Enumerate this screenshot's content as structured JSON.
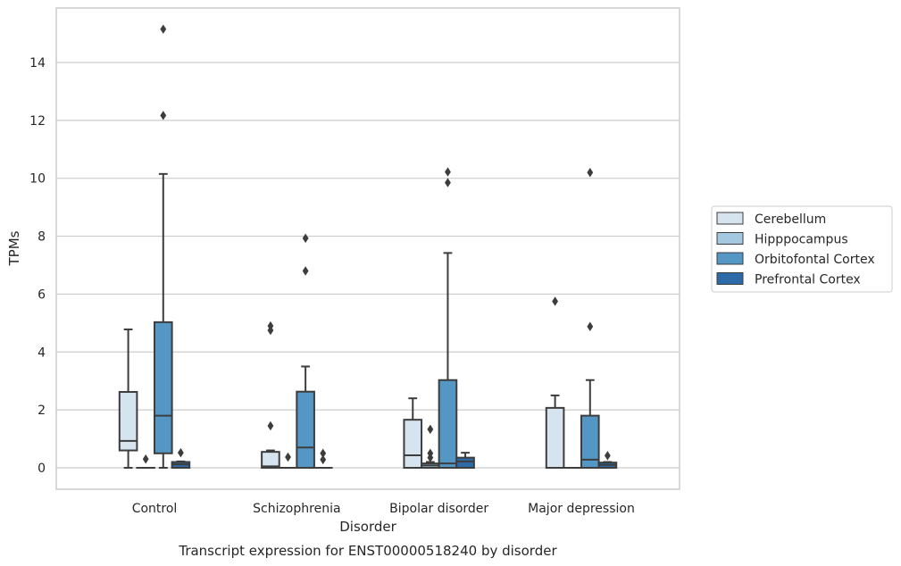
{
  "chart_data": {
    "type": "box",
    "caption": "Transcript expression for ENST00000518240 by disorder",
    "xlabel": "Disorder",
    "ylabel": "TPMs",
    "ylim": [
      -0.7,
      15.9
    ],
    "yticks": [
      0,
      2,
      4,
      6,
      8,
      10,
      12,
      14
    ],
    "grid": "horizontal",
    "legend_position": "right",
    "categories": [
      "Control",
      "Schizophrenia",
      "Bipolar disorder",
      "Major depression"
    ],
    "series": [
      {
        "name": "Cerebellum",
        "color": "#d6e4f0",
        "boxes": [
          {
            "whisker_low": 0.0,
            "q1": 0.6,
            "median": 0.93,
            "q3": 2.62,
            "whisker_high": 4.78,
            "outliers": []
          },
          {
            "whisker_low": 0.0,
            "q1": 0.0,
            "median": 0.05,
            "q3": 0.55,
            "whisker_high": 0.6,
            "outliers": [
              1.45,
              4.75,
              4.9
            ]
          },
          {
            "whisker_low": 0.0,
            "q1": 0.0,
            "median": 0.43,
            "q3": 1.66,
            "whisker_high": 2.4,
            "outliers": []
          },
          {
            "whisker_low": 0.0,
            "q1": 0.0,
            "median": 0.0,
            "q3": 2.07,
            "whisker_high": 2.5,
            "outliers": [
              5.75
            ]
          }
        ]
      },
      {
        "name": "Hipppocampus",
        "color": "#a4c8e0",
        "boxes": [
          {
            "whisker_low": 0.0,
            "q1": 0.0,
            "median": 0.0,
            "q3": 0.0,
            "whisker_high": 0.0,
            "outliers": [
              0.3
            ]
          },
          {
            "whisker_low": 0.0,
            "q1": 0.0,
            "median": 0.0,
            "q3": 0.0,
            "whisker_high": 0.0,
            "outliers": [
              0.37
            ]
          },
          {
            "whisker_low": 0.0,
            "q1": 0.0,
            "median": 0.08,
            "q3": 0.15,
            "whisker_high": 0.2,
            "outliers": [
              0.35,
              0.5,
              1.33
            ]
          },
          {
            "whisker_low": 0.0,
            "q1": 0.0,
            "median": 0.0,
            "q3": 0.0,
            "whisker_high": 0.0,
            "outliers": []
          }
        ]
      },
      {
        "name": "Orbitofontal Cortex",
        "color": "#5497c4",
        "boxes": [
          {
            "whisker_low": 0.0,
            "q1": 0.5,
            "median": 1.8,
            "q3": 5.03,
            "whisker_high": 10.15,
            "outliers": [
              12.17,
              15.15
            ]
          },
          {
            "whisker_low": 0.0,
            "q1": 0.0,
            "median": 0.7,
            "q3": 2.63,
            "whisker_high": 3.5,
            "outliers": [
              6.8,
              7.93
            ]
          },
          {
            "whisker_low": 0.0,
            "q1": 0.0,
            "median": 0.15,
            "q3": 3.03,
            "whisker_high": 7.42,
            "outliers": [
              9.85,
              10.22
            ]
          },
          {
            "whisker_low": 0.0,
            "q1": 0.0,
            "median": 0.28,
            "q3": 1.8,
            "whisker_high": 3.03,
            "outliers": [
              4.88,
              10.2
            ]
          }
        ]
      },
      {
        "name": "Prefrontal Cortex",
        "color": "#2c6aa8",
        "boxes": [
          {
            "whisker_low": 0.0,
            "q1": 0.0,
            "median": 0.12,
            "q3": 0.2,
            "whisker_high": 0.22,
            "outliers": [
              0.52
            ]
          },
          {
            "whisker_low": 0.0,
            "q1": 0.0,
            "median": 0.0,
            "q3": 0.0,
            "whisker_high": 0.0,
            "outliers": [
              0.28,
              0.5
            ]
          },
          {
            "whisker_low": 0.0,
            "q1": 0.0,
            "median": 0.22,
            "q3": 0.35,
            "whisker_high": 0.52,
            "outliers": []
          },
          {
            "whisker_low": 0.0,
            "q1": 0.0,
            "median": 0.1,
            "q3": 0.18,
            "whisker_high": 0.2,
            "outliers": [
              0.42
            ]
          }
        ]
      }
    ]
  }
}
